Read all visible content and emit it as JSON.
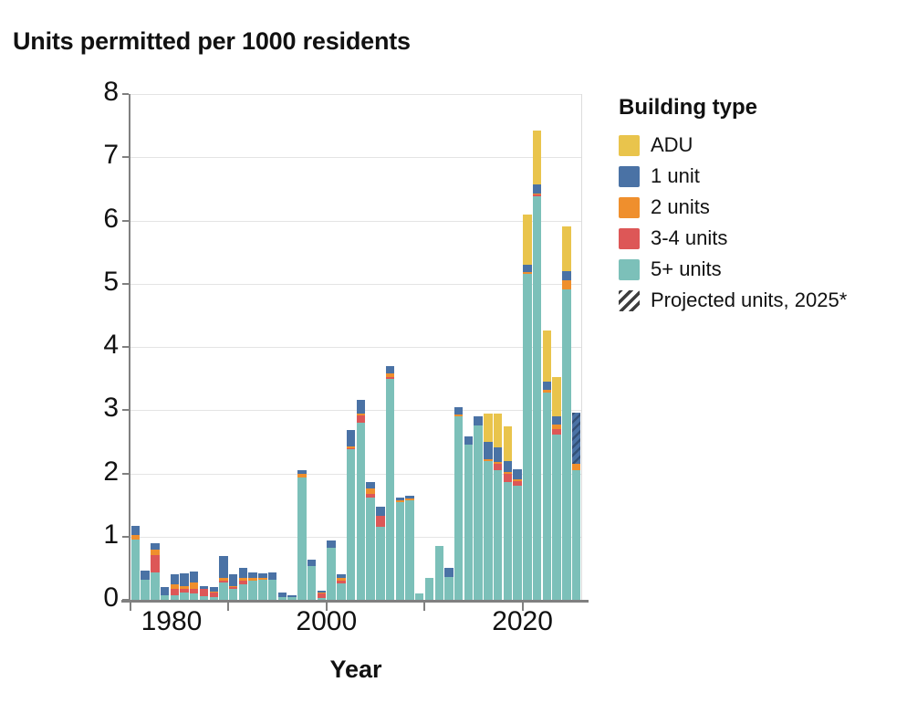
{
  "title": "Units permitted per 1000 residents",
  "axes": {
    "x_title": "Year",
    "y_ticks": [
      0,
      1,
      2,
      3,
      4,
      5,
      6,
      7,
      8
    ],
    "x_major_ticks": [
      1980,
      1990,
      2000,
      2010,
      2020
    ],
    "x_labeled_ticks": [
      "1980",
      "2000",
      "2020"
    ]
  },
  "legend": {
    "header": "Building type",
    "items": [
      {
        "label": "ADU",
        "color": "#e9c44c"
      },
      {
        "label": "1 unit",
        "color": "#4a72a5"
      },
      {
        "label": "2 units",
        "color": "#ef8f2d"
      },
      {
        "label": "3-4 units",
        "color": "#dd5757"
      },
      {
        "label": "5+ units",
        "color": "#7cc0b9"
      },
      {
        "label": "Projected units, 2025*",
        "hatch": true
      }
    ]
  },
  "colors": {
    "adu": "#e9c44c",
    "one_unit": "#4a72a5",
    "two_units": "#ef8f2d",
    "three_four_units": "#dd5757",
    "five_plus_units": "#7cc0b9",
    "axis": "#808080",
    "grid": "#e4e4e4",
    "projected_base": "#4a72a5"
  },
  "chart_data": {
    "type": "bar",
    "stacked": true,
    "title": "Units permitted per 1000 residents",
    "xlabel": "Year",
    "ylabel": "",
    "ylim": [
      0,
      8
    ],
    "grid": true,
    "legend_position": "right",
    "projected_note": "Projected units, 2025*",
    "projected_year": 2025,
    "categories": [
      1980,
      1981,
      1982,
      1983,
      1984,
      1985,
      1986,
      1987,
      1988,
      1989,
      1990,
      1991,
      1992,
      1993,
      1994,
      1995,
      1996,
      1997,
      1998,
      1999,
      2000,
      2001,
      2002,
      2003,
      2004,
      2005,
      2006,
      2007,
      2008,
      2009,
      2010,
      2011,
      2012,
      2013,
      2014,
      2015,
      2016,
      2017,
      2018,
      2019,
      2020,
      2021,
      2022,
      2023,
      2024,
      2025
    ],
    "series": [
      {
        "name": "5+ units",
        "color": "#7cc0b9",
        "values": [
          0.95,
          0.32,
          0.43,
          0.07,
          0.07,
          0.12,
          0.1,
          0.06,
          0.05,
          0.28,
          0.18,
          0.25,
          0.3,
          0.32,
          0.32,
          0.05,
          0.04,
          1.93,
          0.53,
          0.03,
          0.82,
          0.26,
          2.38,
          2.8,
          1.62,
          1.16,
          3.5,
          1.55,
          1.57,
          0.1,
          0.35,
          0.85,
          0.36,
          2.9,
          2.46,
          2.76,
          2.2,
          2.05,
          1.87,
          1.8,
          5.15,
          6.38,
          3.28,
          2.62,
          4.91,
          2.05
        ]
      },
      {
        "name": "3-4 units",
        "color": "#dd5757",
        "values": [
          0,
          0,
          0.28,
          0,
          0.1,
          0.05,
          0.08,
          0.12,
          0.06,
          0.03,
          0.02,
          0.05,
          0,
          0,
          0,
          0,
          0,
          0,
          0,
          0.08,
          0,
          0.04,
          0.02,
          0.12,
          0.06,
          0.17,
          0.03,
          0,
          0,
          0,
          0,
          0,
          0,
          0,
          0,
          0,
          0,
          0.1,
          0.13,
          0.08,
          0,
          0.03,
          0,
          0.08,
          0,
          0
        ]
      },
      {
        "name": "2 units",
        "color": "#ef8f2d",
        "values": [
          0.07,
          0,
          0.09,
          0,
          0.07,
          0.05,
          0.1,
          0,
          0.02,
          0.03,
          0.02,
          0.05,
          0.04,
          0.02,
          0,
          0,
          0,
          0.07,
          0,
          0.01,
          0,
          0.04,
          0.02,
          0.02,
          0.08,
          0,
          0.05,
          0.02,
          0.03,
          0,
          0,
          0,
          0,
          0.03,
          0,
          0,
          0.03,
          0.03,
          0.02,
          0.03,
          0.04,
          0.02,
          0.04,
          0.07,
          0.15,
          0.1
        ]
      },
      {
        "name": "1 unit",
        "color": "#4a72a5",
        "values": [
          0.15,
          0.14,
          0.09,
          0.13,
          0.17,
          0.2,
          0.17,
          0.04,
          0.07,
          0.35,
          0.18,
          0.15,
          0.1,
          0.08,
          0.12,
          0.06,
          0.03,
          0.05,
          0.11,
          0.02,
          0.12,
          0.06,
          0.27,
          0.22,
          0.1,
          0.15,
          0.11,
          0.05,
          0.05,
          0,
          0,
          0,
          0.15,
          0.12,
          0.13,
          0.14,
          0.27,
          0.23,
          0.17,
          0.15,
          0.11,
          0.14,
          0.13,
          0.13,
          0.14,
          0
        ]
      },
      {
        "name": "ADU",
        "color": "#e9c44c",
        "values": [
          0,
          0,
          0,
          0,
          0,
          0,
          0,
          0,
          0,
          0,
          0,
          0,
          0,
          0,
          0,
          0,
          0,
          0,
          0,
          0,
          0,
          0,
          0,
          0,
          0,
          0,
          0,
          0,
          0,
          0,
          0,
          0,
          0,
          0,
          0,
          0,
          0.45,
          0.53,
          0.56,
          0,
          0.79,
          0.85,
          0.81,
          0.62,
          0.7,
          0
        ]
      },
      {
        "name": "Projected units, 2025*",
        "color": "#4a72a5",
        "projected": true,
        "values": [
          0,
          0,
          0,
          0,
          0,
          0,
          0,
          0,
          0,
          0,
          0,
          0,
          0,
          0,
          0,
          0,
          0,
          0,
          0,
          0,
          0,
          0,
          0,
          0,
          0,
          0,
          0,
          0,
          0,
          0,
          0,
          0,
          0,
          0,
          0,
          0,
          0,
          0,
          0,
          0,
          0,
          0,
          0,
          0,
          0,
          0.81
        ]
      }
    ]
  }
}
